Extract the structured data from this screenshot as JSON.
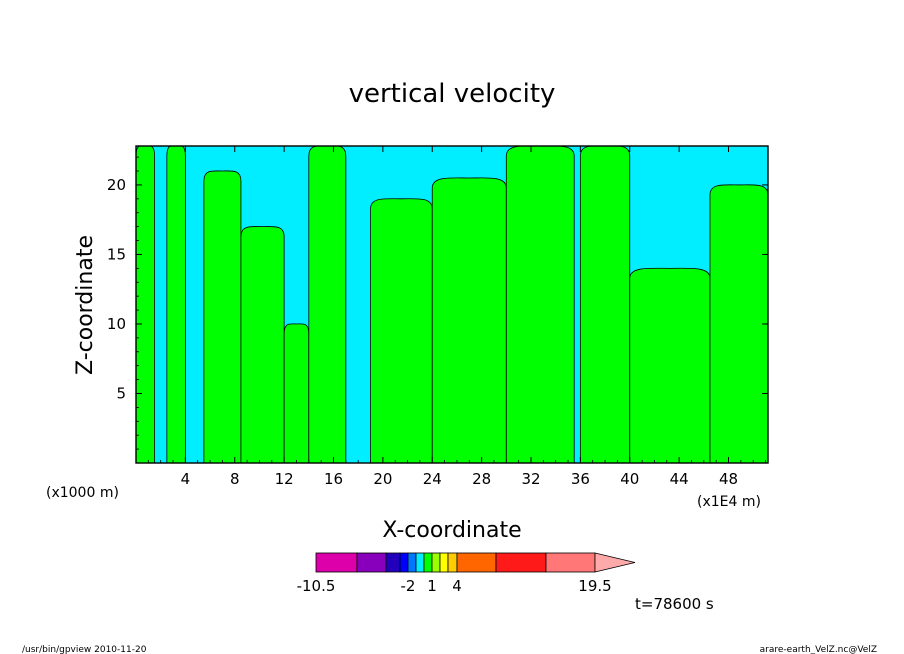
{
  "chart_data": {
    "type": "heatmap",
    "title": "vertical velocity",
    "xlabel": "X-coordinate",
    "ylabel": "Z-coordinate",
    "x_unit_left": "(x1000 m)",
    "x_unit_right": "(x1E4 m)",
    "x_ticks": [
      "4",
      "8",
      "12",
      "16",
      "20",
      "24",
      "28",
      "32",
      "36",
      "40",
      "44",
      "48"
    ],
    "x_tick_values": [
      4,
      8,
      12,
      16,
      20,
      24,
      28,
      32,
      36,
      40,
      44,
      48
    ],
    "y_ticks": [
      "5",
      "10",
      "15",
      "20"
    ],
    "y_tick_values": [
      5,
      10,
      15,
      20
    ],
    "xlim": [
      0,
      51.2
    ],
    "ylim": [
      0,
      22.8
    ],
    "grid": false,
    "time_label": "t=78600 s",
    "colorbar": {
      "orientation": "horizontal",
      "levels": [
        -10.5,
        -7.5,
        -4.5,
        -3,
        -2,
        -1,
        0,
        1,
        2,
        3,
        4,
        7.5,
        13.5,
        19.5
      ],
      "labels": [
        "-10.5",
        "-2",
        "1",
        "4",
        "19.5"
      ],
      "label_values": [
        -10.5,
        -2,
        1,
        4,
        19.5
      ],
      "colors": [
        "#dd00aa",
        "#8800bb",
        "#2200bb",
        "#0000ff",
        "#0077ff",
        "#00eeff",
        "#00ff00",
        "#99ff00",
        "#ffff00",
        "#ffcc00",
        "#ff6600",
        "#ff1a1a",
        "#ff7777"
      ],
      "extend_color": "#ffaaaa"
    },
    "field_colors": {
      "negative": "#00eeff",
      "positive": "#00ff00"
    },
    "positive_regions": [
      {
        "x": [
          0.0,
          1.5
        ],
        "z_top": 22.8
      },
      {
        "x": [
          2.5,
          4.0
        ],
        "z_top": 22.8
      },
      {
        "x": [
          5.5,
          8.5
        ],
        "z_top": 21.0
      },
      {
        "x": [
          8.5,
          12.0
        ],
        "z_top": 17.0
      },
      {
        "x": [
          12.0,
          14.0
        ],
        "z_top": 10.0
      },
      {
        "x": [
          14.0,
          17.0
        ],
        "z_top": 22.8
      },
      {
        "x": [
          19.0,
          24.0
        ],
        "z_top": 19.0
      },
      {
        "x": [
          24.0,
          30.0
        ],
        "z_top": 20.5
      },
      {
        "x": [
          30.0,
          35.5
        ],
        "z_top": 22.8
      },
      {
        "x": [
          36.0,
          40.0
        ],
        "z_top": 22.8
      },
      {
        "x": [
          40.0,
          46.5
        ],
        "z_top": 14.0
      },
      {
        "x": [
          46.5,
          51.2
        ],
        "z_top": 20.0
      }
    ]
  },
  "footer": {
    "left": "/usr/bin/gpview  2010-11-20",
    "right": "arare-earth_VelZ.nc@VelZ"
  }
}
